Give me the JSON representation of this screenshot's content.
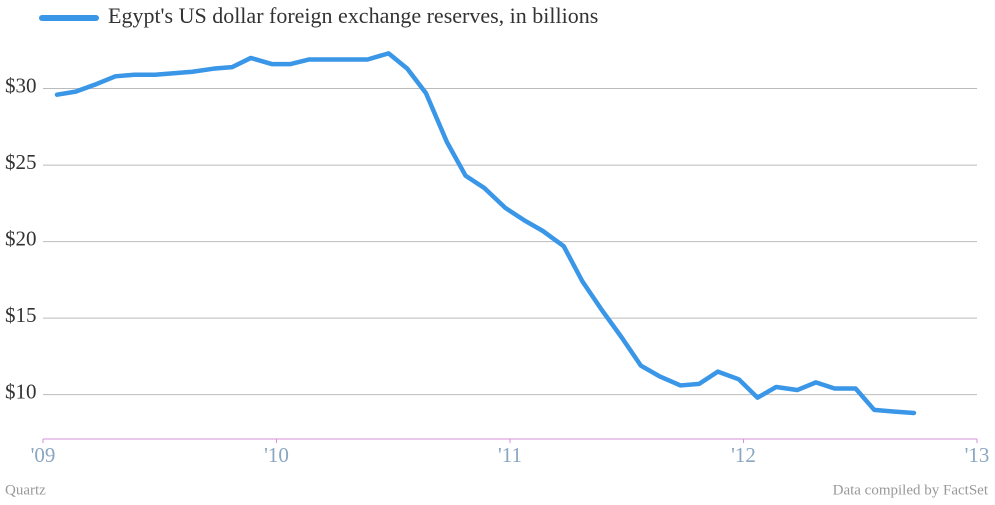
{
  "chart_data": {
    "type": "line",
    "title": "Egypt's US dollar foreign exchange reserves, in billions",
    "source": "Data compiled by FactSet",
    "credit": "Quartz",
    "x": [
      2009.06,
      2009.14,
      2009.23,
      2009.31,
      2009.39,
      2009.48,
      2009.56,
      2009.64,
      2009.73,
      2009.81,
      2009.89,
      2009.98,
      2010.06,
      2010.14,
      2010.23,
      2010.31,
      2010.39,
      2010.48,
      2010.56,
      2010.64,
      2010.73,
      2010.81,
      2010.89,
      2010.98,
      2011.06,
      2011.14,
      2011.23,
      2011.31,
      2011.39,
      2011.48,
      2011.56,
      2011.64,
      2011.73,
      2011.81,
      2011.89,
      2011.98,
      2012.06,
      2012.14,
      2012.23,
      2012.31,
      2012.39,
      2012.48,
      2012.56,
      2012.64,
      2012.73
    ],
    "series": [
      {
        "name": "Egypt's US dollar foreign exchange reserves, in billions",
        "color": "#3a96e6",
        "values": [
          29.6,
          29.8,
          30.3,
          30.8,
          30.9,
          30.9,
          31.0,
          31.1,
          31.3,
          31.4,
          32.0,
          31.6,
          31.6,
          31.9,
          31.9,
          31.9,
          31.9,
          32.3,
          31.3,
          29.7,
          26.5,
          24.3,
          23.5,
          22.2,
          21.4,
          20.7,
          19.7,
          17.4,
          15.6,
          13.7,
          11.9,
          11.2,
          10.6,
          10.7,
          11.5,
          11.0,
          9.8,
          10.5,
          10.3,
          10.8,
          10.4,
          10.4,
          9.0,
          8.9,
          8.8
        ]
      }
    ],
    "xlim": [
      2009,
      2013
    ],
    "xticks": [
      {
        "value": 2009,
        "label": "'09"
      },
      {
        "value": 2010,
        "label": "'10"
      },
      {
        "value": 2011,
        "label": "'11"
      },
      {
        "value": 2012,
        "label": "'12"
      },
      {
        "value": 2013,
        "label": "'13"
      }
    ],
    "ylim": [
      7.1,
      33.5
    ],
    "yticks": [
      {
        "value": 10,
        "label": "$10"
      },
      {
        "value": 15,
        "label": "$15"
      },
      {
        "value": 20,
        "label": "$20"
      },
      {
        "value": 25,
        "label": "$25"
      },
      {
        "value": 30,
        "label": "$30"
      }
    ],
    "grid": true
  }
}
